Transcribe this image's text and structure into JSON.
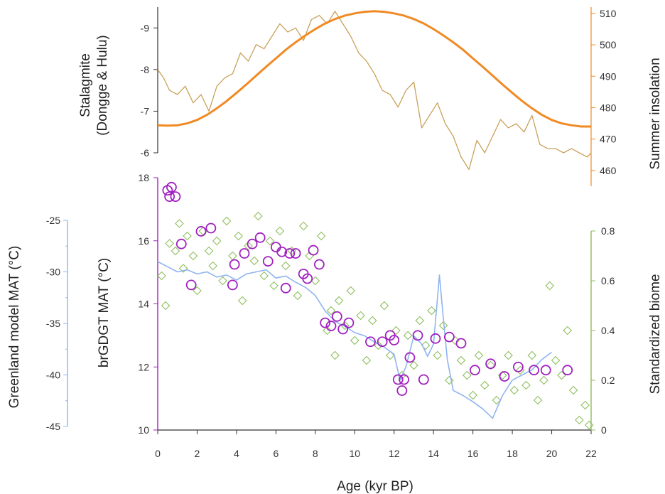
{
  "chart_data": {
    "type": "line",
    "x_axis": {
      "label": "Age (kyr BP)",
      "range": [
        0,
        22
      ],
      "ticks": [
        "0",
        "2",
        "4",
        "6",
        "8",
        "10",
        "12",
        "14",
        "16",
        "18",
        "20",
        "22"
      ]
    },
    "panels": {
      "top": {
        "left_axis": {
          "label_line1": "Stalagmite",
          "label_line2": "(Dongge & Hulu)",
          "range": [
            -9.5,
            -6
          ],
          "reversed": true,
          "ticks": [
            "-9",
            "-8",
            "-7",
            "-6"
          ],
          "color": "#333333"
        },
        "right_axis": {
          "label": "Summer insolation",
          "range": [
            455,
            512
          ],
          "ticks": [
            "510",
            "500",
            "490",
            "480",
            "470",
            "460"
          ],
          "color": "#F08A24"
        },
        "series": [
          {
            "key": "stalagmite",
            "kind": "line",
            "color": "#C9A15A",
            "x": [
              0,
              0.3,
              0.6,
              1.0,
              1.4,
              1.8,
              2.2,
              2.6,
              3.0,
              3.4,
              3.8,
              4.2,
              4.6,
              5.0,
              5.4,
              5.8,
              6.2,
              6.6,
              7.0,
              7.4,
              7.8,
              8.2,
              8.6,
              9.0,
              9.4,
              9.8,
              10.2,
              10.6,
              11.0,
              11.4,
              11.8,
              12.2,
              12.6,
              13.0,
              13.4,
              13.8,
              14.2,
              14.6,
              15.0,
              15.4,
              15.8,
              16.2,
              16.6,
              17.0,
              17.4,
              17.8,
              18.2,
              18.6,
              19.0,
              19.4,
              19.8,
              20.2,
              20.6,
              21.0,
              21.4,
              21.8,
              22.0
            ],
            "y": [
              -8.0,
              -7.8,
              -7.5,
              -7.4,
              -7.6,
              -7.2,
              -7.4,
              -7.0,
              -7.6,
              -7.8,
              -7.9,
              -8.4,
              -8.2,
              -8.6,
              -8.5,
              -8.8,
              -9.1,
              -8.9,
              -9.0,
              -8.7,
              -9.2,
              -9.3,
              -9.1,
              -9.4,
              -9.1,
              -8.8,
              -8.4,
              -8.2,
              -7.9,
              -7.5,
              -7.4,
              -7.1,
              -7.5,
              -7.7,
              -6.6,
              -6.9,
              -7.2,
              -6.7,
              -6.4,
              -5.9,
              -5.6,
              -6.3,
              -6.0,
              -6.4,
              -6.8,
              -6.6,
              -6.7,
              -6.5,
              -6.9,
              -6.2,
              -6.1,
              -6.1,
              -6.0,
              -6.1,
              -6.0,
              -5.9,
              -6.0
            ]
          },
          {
            "key": "insolation",
            "kind": "line",
            "color": "#F08A24",
            "x": [
              0,
              0.5,
              1.0,
              1.5,
              2.0,
              2.5,
              3.0,
              3.5,
              4.0,
              4.5,
              5.0,
              5.5,
              6.0,
              6.5,
              7.0,
              7.5,
              8.0,
              8.5,
              9.0,
              9.5,
              10.0,
              10.5,
              11.0,
              11.5,
              12.0,
              12.5,
              13.0,
              13.5,
              14.0,
              14.5,
              15.0,
              15.5,
              16.0,
              16.5,
              17.0,
              17.5,
              18.0,
              18.5,
              19.0,
              19.5,
              20.0,
              20.5,
              21.0,
              21.5,
              22.0
            ],
            "y": [
              474.4,
              474.3,
              474.4,
              475.0,
              476.1,
              477.7,
              479.8,
              482.1,
              484.7,
              487.4,
              490.2,
              493.0,
              495.7,
              498.4,
              500.8,
              503.0,
              505.0,
              506.8,
              508.2,
              509.3,
              510.0,
              510.5,
              510.7,
              510.5,
              510.0,
              509.3,
              508.2,
              506.8,
              505.0,
              503.0,
              500.8,
              498.4,
              495.7,
              493.0,
              490.2,
              487.4,
              484.7,
              482.1,
              479.8,
              477.7,
              476.1,
              475.0,
              474.4,
              474.0,
              474.0
            ]
          }
        ]
      },
      "bottom": {
        "left_axis_purple": {
          "label": "brGDGT MAT (°C)",
          "range": [
            10,
            18
          ],
          "ticks": [
            "10",
            "12",
            "14",
            "16",
            "18"
          ],
          "color": "#A020C0"
        },
        "left_axis_blue": {
          "label": "Greenland model MAT (°C)",
          "range": [
            -45,
            -25
          ],
          "ticks": [
            "-45",
            "-40",
            "-35",
            "-30",
            "-25"
          ],
          "color": "#8FB4F0"
        },
        "right_axis": {
          "label": "Standardized biome",
          "range": [
            0,
            0.8
          ],
          "ticks": [
            "0",
            "0.2",
            "0.4",
            "0.6",
            "0.8"
          ],
          "color": "#8DBE5A"
        },
        "series": [
          {
            "key": "greenland",
            "kind": "line",
            "color": "#8FB4F0",
            "x": [
              0.0,
              0.5,
              1.0,
              1.5,
              2.0,
              2.5,
              3.0,
              3.5,
              4.0,
              4.5,
              5.0,
              5.5,
              6.0,
              6.5,
              7.0,
              7.5,
              8.0,
              8.5,
              9.0,
              9.5,
              10.0,
              10.5,
              11.0,
              11.5,
              12.0,
              12.3,
              12.6,
              13.0,
              13.4,
              13.7,
              14.0,
              14.3,
              14.5,
              14.7,
              15.0,
              15.5,
              16.0,
              16.5,
              17.0,
              17.5,
              18.0,
              18.5,
              19.0,
              19.5,
              20.0
            ],
            "y": [
              -29.0,
              -29.5,
              -30.0,
              -29.8,
              -30.2,
              -30.0,
              -30.5,
              -30.3,
              -30.8,
              -30.2,
              -30.0,
              -29.8,
              -30.6,
              -30.4,
              -31.0,
              -31.5,
              -32.3,
              -33.8,
              -34.8,
              -35.3,
              -35.9,
              -36.2,
              -36.8,
              -37.3,
              -38.0,
              -40.5,
              -39.2,
              -36.2,
              -37.0,
              -38.2,
              -37.0,
              -30.3,
              -34.5,
              -38.5,
              -41.5,
              -42.0,
              -42.6,
              -43.3,
              -44.2,
              -42.0,
              -40.5,
              -40.0,
              -39.5,
              -38.5,
              -37.8
            ]
          },
          {
            "key": "brgdgt",
            "kind": "scatter",
            "marker": "circle",
            "color": "#A020C0",
            "points": [
              [
                0.5,
                17.6
              ],
              [
                0.7,
                17.7
              ],
              [
                0.6,
                17.4
              ],
              [
                0.9,
                17.4
              ],
              [
                1.2,
                15.9
              ],
              [
                1.7,
                14.6
              ],
              [
                2.2,
                16.3
              ],
              [
                2.7,
                16.4
              ],
              [
                3.8,
                14.6
              ],
              [
                3.9,
                15.25
              ],
              [
                4.4,
                15.6
              ],
              [
                4.8,
                15.9
              ],
              [
                5.2,
                16.1
              ],
              [
                5.6,
                15.35
              ],
              [
                6.0,
                15.8
              ],
              [
                6.3,
                15.65
              ],
              [
                6.5,
                14.5
              ],
              [
                6.7,
                15.6
              ],
              [
                7.0,
                15.6
              ],
              [
                7.4,
                14.95
              ],
              [
                7.6,
                14.8
              ],
              [
                7.9,
                15.7
              ],
              [
                8.2,
                15.25
              ],
              [
                8.5,
                13.4
              ],
              [
                8.8,
                13.3
              ],
              [
                9.1,
                13.6
              ],
              [
                9.4,
                13.2
              ],
              [
                9.7,
                13.4
              ],
              [
                10.8,
                12.8
              ],
              [
                11.4,
                12.8
              ],
              [
                11.8,
                13.0
              ],
              [
                12.0,
                12.85
              ],
              [
                12.2,
                11.6
              ],
              [
                12.5,
                11.6
              ],
              [
                12.8,
                12.3
              ],
              [
                13.2,
                13.0
              ],
              [
                13.5,
                11.6
              ],
              [
                14.1,
                12.9
              ],
              [
                14.8,
                12.95
              ],
              [
                15.4,
                12.75
              ],
              [
                16.1,
                11.9
              ],
              [
                16.9,
                12.1
              ],
              [
                17.6,
                11.7
              ],
              [
                18.3,
                12.0
              ],
              [
                19.1,
                11.9
              ],
              [
                19.7,
                11.9
              ],
              [
                20.8,
                11.9
              ],
              [
                12.4,
                11.25
              ]
            ]
          },
          {
            "key": "biome",
            "kind": "scatter",
            "marker": "diamond",
            "color": "#8DBE5A",
            "points": [
              [
                0.2,
                0.62
              ],
              [
                0.4,
                0.5
              ],
              [
                0.6,
                0.75
              ],
              [
                0.9,
                0.72
              ],
              [
                1.1,
                0.83
              ],
              [
                1.3,
                0.65
              ],
              [
                1.5,
                0.78
              ],
              [
                1.8,
                0.7
              ],
              [
                2.0,
                0.56
              ],
              [
                2.3,
                0.8
              ],
              [
                2.6,
                0.72
              ],
              [
                2.8,
                0.66
              ],
              [
                3.0,
                0.76
              ],
              [
                3.3,
                0.6
              ],
              [
                3.5,
                0.84
              ],
              [
                3.8,
                0.7
              ],
              [
                4.1,
                0.78
              ],
              [
                4.3,
                0.52
              ],
              [
                4.6,
                0.74
              ],
              [
                4.9,
                0.68
              ],
              [
                5.1,
                0.86
              ],
              [
                5.4,
                0.62
              ],
              [
                5.7,
                0.76
              ],
              [
                5.9,
                0.58
              ],
              [
                6.2,
                0.8
              ],
              [
                6.5,
                0.66
              ],
              [
                6.8,
                0.72
              ],
              [
                7.1,
                0.54
              ],
              [
                7.4,
                0.82
              ],
              [
                7.7,
                0.7
              ],
              [
                8.0,
                0.6
              ],
              [
                8.3,
                0.78
              ],
              [
                8.6,
                0.4
              ],
              [
                8.8,
                0.48
              ],
              [
                9.0,
                0.3
              ],
              [
                9.2,
                0.52
              ],
              [
                9.5,
                0.42
              ],
              [
                9.8,
                0.56
              ],
              [
                10.0,
                0.36
              ],
              [
                10.3,
                0.46
              ],
              [
                10.6,
                0.28
              ],
              [
                10.9,
                0.44
              ],
              [
                11.2,
                0.34
              ],
              [
                11.5,
                0.5
              ],
              [
                11.8,
                0.3
              ],
              [
                12.1,
                0.4
              ],
              [
                12.4,
                0.22
              ],
              [
                12.7,
                0.38
              ],
              [
                13.0,
                0.26
              ],
              [
                13.3,
                0.44
              ],
              [
                13.6,
                0.34
              ],
              [
                13.9,
                0.48
              ],
              [
                14.2,
                0.3
              ],
              [
                14.5,
                0.42
              ],
              [
                14.8,
                0.2
              ],
              [
                15.1,
                0.36
              ],
              [
                15.4,
                0.28
              ],
              [
                15.7,
                0.22
              ],
              [
                16.0,
                0.14
              ],
              [
                16.3,
                0.3
              ],
              [
                16.6,
                0.18
              ],
              [
                16.9,
                0.26
              ],
              [
                17.2,
                0.12
              ],
              [
                17.5,
                0.22
              ],
              [
                17.8,
                0.3
              ],
              [
                18.1,
                0.16
              ],
              [
                18.4,
                0.24
              ],
              [
                18.7,
                0.18
              ],
              [
                19.0,
                0.3
              ],
              [
                19.3,
                0.12
              ],
              [
                19.6,
                0.2
              ],
              [
                19.9,
                0.58
              ],
              [
                20.2,
                0.28
              ],
              [
                20.5,
                0.22
              ],
              [
                20.8,
                0.4
              ],
              [
                21.1,
                0.16
              ],
              [
                21.4,
                0.04
              ],
              [
                21.7,
                0.1
              ],
              [
                21.9,
                0.02
              ]
            ]
          }
        ]
      }
    }
  }
}
